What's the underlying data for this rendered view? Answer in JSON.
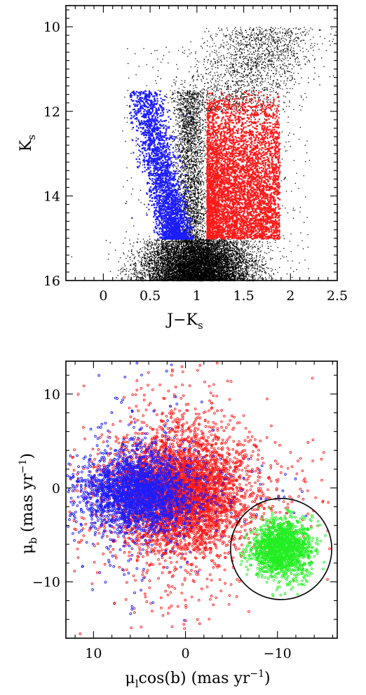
{
  "chart_data": [
    {
      "type": "scatter",
      "title": "",
      "xlabel": "J−K",
      "xlabel_sub": "s",
      "ylabel": "K",
      "ylabel_sub": "s",
      "xlim": [
        -0.4,
        2.5
      ],
      "ylim": [
        16,
        9.5
      ],
      "y_inverted": true,
      "xticks": [
        0,
        0.5,
        1,
        1.5,
        2,
        2.5
      ],
      "xtick_labels": [
        "0",
        "0.5",
        "1",
        "1.5",
        "2",
        "2.5"
      ],
      "yticks": [
        10,
        12,
        14,
        16
      ],
      "ytick_labels": [
        "10",
        "12",
        "14",
        "16"
      ],
      "grid": false,
      "colors": {
        "field": "#000000",
        "blue": "#1c1cff",
        "red": "#ff1a1a"
      },
      "series": [
        {
          "color": "blue",
          "selection": {
            "x_range": [
              0.25,
              0.95
            ],
            "y_range": [
              11.5,
              15.0
            ]
          },
          "density": "dense lower part, sparse toward Ks≈11.5, tilted sequence"
        },
        {
          "color": "red",
          "selection": {
            "x_range": [
              1.1,
              1.9
            ],
            "y_range": [
              11.5,
              15.0
            ]
          },
          "density": "very dense rectangle"
        },
        {
          "color": "black",
          "description": "full field, dense below Ks=15 and along giant branch"
        }
      ]
    },
    {
      "type": "scatter",
      "title": "",
      "xlabel": "μ",
      "xlabel_sub": "l",
      "xlabel_rest": "cos(b)  (mas yr",
      "xlabel_sup": "−1",
      "xlabel_close": ")",
      "ylabel": "μ",
      "ylabel_sub": "b",
      "ylabel_rest": "  (mas yr",
      "ylabel_sup": "−1",
      "ylabel_close": ")",
      "xlim": [
        13,
        -16.5
      ],
      "ylim": [
        -16,
        13.5
      ],
      "x_inverted": true,
      "xticks": [
        10,
        0,
        -10
      ],
      "xtick_labels": [
        "10",
        "0",
        "−10"
      ],
      "yticks": [
        10,
        0,
        -10
      ],
      "ytick_labels": [
        "10",
        "0",
        "−10"
      ],
      "grid": false,
      "colors": {
        "blue": "#1c1cff",
        "red": "#ff1a1a",
        "green": "#22ee22",
        "circle": "#000000"
      },
      "series": [
        {
          "color": "blue",
          "center": [
            5.0,
            -0.5
          ],
          "spread": [
            3.0,
            2.0
          ]
        },
        {
          "color": "red",
          "center": [
            0.5,
            -0.5
          ],
          "spread": [
            3.5,
            3.0
          ]
        },
        {
          "color": "green",
          "center": [
            -10.5,
            -6.5
          ],
          "spread": [
            1.6,
            1.6
          ]
        }
      ],
      "selection_circle": {
        "center": [
          -10.4,
          -6.5
        ],
        "radius": 5.5
      }
    }
  ]
}
